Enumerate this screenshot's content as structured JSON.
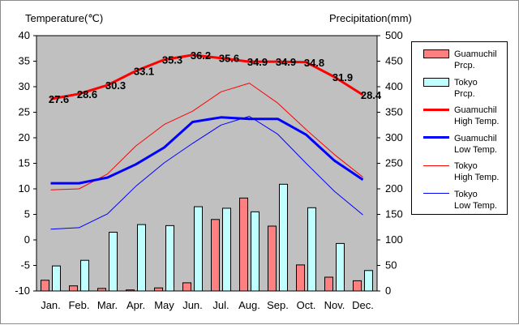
{
  "chart_data": {
    "type": "bar+line",
    "title": "",
    "left_axis": {
      "label": "Temperature(℃)",
      "min": -10,
      "max": 40,
      "ticks": [
        -10,
        -5,
        0,
        5,
        10,
        15,
        20,
        25,
        30,
        35,
        40
      ]
    },
    "right_axis": {
      "label": "Precipitation(mm)",
      "min": 0,
      "max": 500,
      "ticks": [
        0,
        50,
        100,
        150,
        200,
        250,
        300,
        350,
        400,
        450,
        500
      ]
    },
    "categories": [
      "Jan.",
      "Feb.",
      "Mar.",
      "Apr.",
      "May",
      "Jun.",
      "Jul.",
      "Aug.",
      "Sep.",
      "Oct.",
      "Nov.",
      "Dec."
    ],
    "grid": false,
    "legend_position": "right",
    "background": "#c0c0c0",
    "series": [
      {
        "name": "Guamuchil Prcp.",
        "kind": "bar",
        "axis": "right",
        "color": "#ff8080",
        "values": [
          21,
          10,
          5,
          2,
          6,
          16,
          140,
          182,
          127,
          51,
          27,
          20
        ]
      },
      {
        "name": "Tokyo Prcp.",
        "kind": "bar",
        "axis": "right",
        "color": "#c0ffff",
        "values": [
          49,
          60,
          115,
          130,
          128,
          165,
          162,
          155,
          209,
          163,
          93,
          40
        ]
      },
      {
        "name": "Guamuchil High Temp.",
        "kind": "line",
        "axis": "left",
        "color": "#ff0000",
        "width": 3,
        "values": [
          27.6,
          28.6,
          30.3,
          33.1,
          35.3,
          36.2,
          35.6,
          34.9,
          34.9,
          34.8,
          31.9,
          28.4
        ]
      },
      {
        "name": "Guamuchil Low Temp.",
        "kind": "line",
        "axis": "left",
        "color": "#0000ff",
        "width": 3,
        "values": [
          11.1,
          11.1,
          12.2,
          14.8,
          18.1,
          23.1,
          24.0,
          23.7,
          23.7,
          20.6,
          15.5,
          11.8
        ]
      },
      {
        "name": "Tokyo High Temp.",
        "kind": "line",
        "axis": "left",
        "color": "#ff0000",
        "width": 1,
        "values": [
          9.8,
          10.0,
          12.9,
          18.4,
          22.6,
          25.2,
          29.0,
          30.7,
          26.8,
          21.6,
          16.7,
          12.3
        ]
      },
      {
        "name": "Tokyo Low Temp.",
        "kind": "line",
        "axis": "left",
        "color": "#0000ff",
        "width": 1,
        "values": [
          2.1,
          2.4,
          5.1,
          10.5,
          15.1,
          18.9,
          22.5,
          24.2,
          20.7,
          15.0,
          9.5,
          4.9
        ]
      }
    ],
    "data_labels": {
      "series": "Guamuchil High Temp.",
      "values": [
        "27.6",
        "28.6",
        "30.3",
        "33.1",
        "35.3",
        "36.2",
        "35.6",
        "34.9",
        "34.9",
        "34.8",
        "31.9",
        "28.4"
      ]
    },
    "legend": [
      {
        "line1": "Guamuchil",
        "line2": "Prcp.",
        "symbol": "bar",
        "color": "#ff8080"
      },
      {
        "line1": "Tokyo",
        "line2": "Prcp.",
        "symbol": "bar",
        "color": "#c0ffff"
      },
      {
        "line1": "Guamuchil",
        "line2": "High Temp.",
        "symbol": "line",
        "color": "#ff0000",
        "width": 3
      },
      {
        "line1": "Guamuchil",
        "line2": "Low Temp.",
        "symbol": "line",
        "color": "#0000ff",
        "width": 3
      },
      {
        "line1": "Tokyo",
        "line2": "High Temp.",
        "symbol": "line",
        "color": "#ff0000",
        "width": 1
      },
      {
        "line1": "Tokyo",
        "line2": "Low Temp.",
        "symbol": "line",
        "color": "#0000ff",
        "width": 1
      }
    ]
  }
}
